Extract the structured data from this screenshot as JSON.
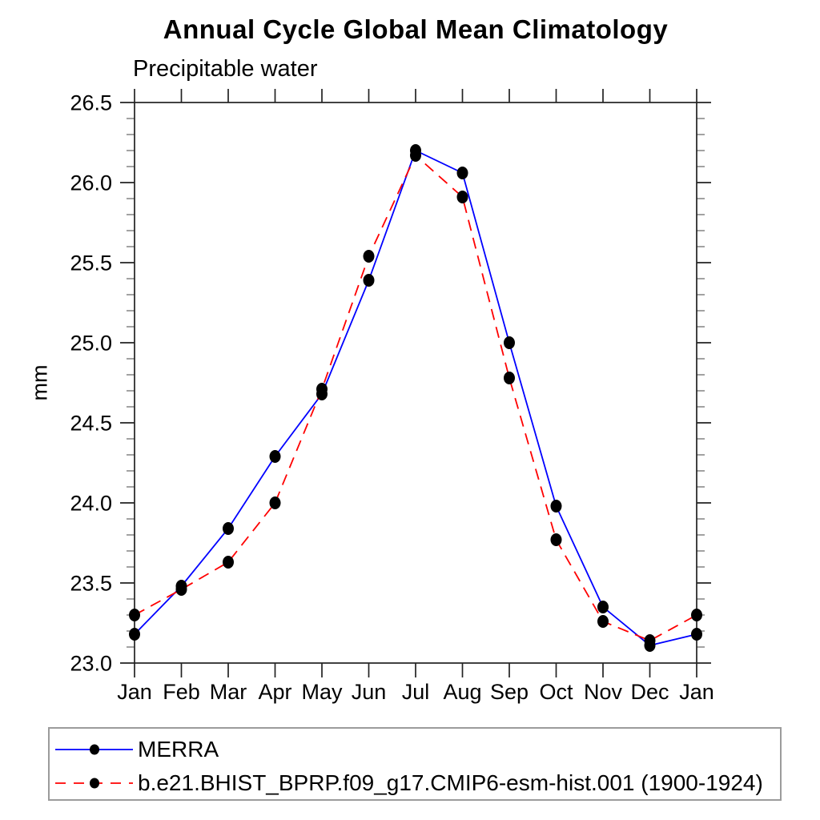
{
  "chart_data": {
    "type": "line",
    "title": "Annual Cycle Global Mean Climatology",
    "subtitle": "Precipitable water",
    "ylabel": "mm",
    "xlabel": "",
    "categories": [
      "Jan",
      "Feb",
      "Mar",
      "Apr",
      "May",
      "Jun",
      "Jul",
      "Aug",
      "Sep",
      "Oct",
      "Nov",
      "Dec",
      "Jan"
    ],
    "ylim": [
      23.0,
      26.5
    ],
    "ytick_step": 0.5,
    "yminor_step": 0.1,
    "grid": false,
    "legend_position": "bottom-left",
    "marker": "filled-circle",
    "series": [
      {
        "id": "merra",
        "name": "MERRA",
        "color": "#0000ff",
        "style": "solid",
        "marker_color": "#000000",
        "values": [
          23.18,
          23.48,
          23.84,
          24.29,
          24.68,
          25.39,
          26.2,
          26.06,
          25.0,
          23.98,
          23.35,
          23.11,
          23.18
        ]
      },
      {
        "id": "cesm-model",
        "name": "b.e21.BHIST_BPRP.f09_g17.CMIP6-esm-hist.001 (1900-1924)",
        "color": "#ff0000",
        "style": "dashed",
        "marker_color": "#000000",
        "values": [
          23.3,
          23.46,
          23.63,
          24.0,
          24.71,
          25.54,
          26.17,
          25.91,
          24.78,
          23.77,
          23.26,
          23.14,
          23.3
        ]
      }
    ]
  }
}
